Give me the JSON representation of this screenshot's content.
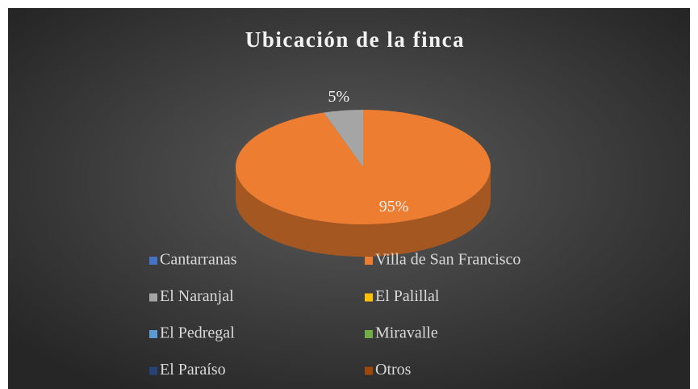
{
  "chart_data": {
    "type": "pie",
    "title": "Ubicación de la finca",
    "categories": [
      "Cantarranas",
      "Villa de San Francisco",
      "El Naranjal",
      "El Palillal",
      "El Pedregal",
      "Miravalle",
      "El Paraíso",
      "Otros"
    ],
    "values": [
      0,
      95,
      5,
      0,
      0,
      0,
      0,
      0
    ],
    "value_labels": [
      null,
      "95%",
      "5%",
      null,
      null,
      null,
      null,
      null
    ],
    "colors": [
      "#4472c4",
      "#ed7d31",
      "#a5a5a5",
      "#ffc000",
      "#5b9bd5",
      "#70ad47",
      "#264478",
      "#9e480e"
    ],
    "legend": "bottom"
  }
}
